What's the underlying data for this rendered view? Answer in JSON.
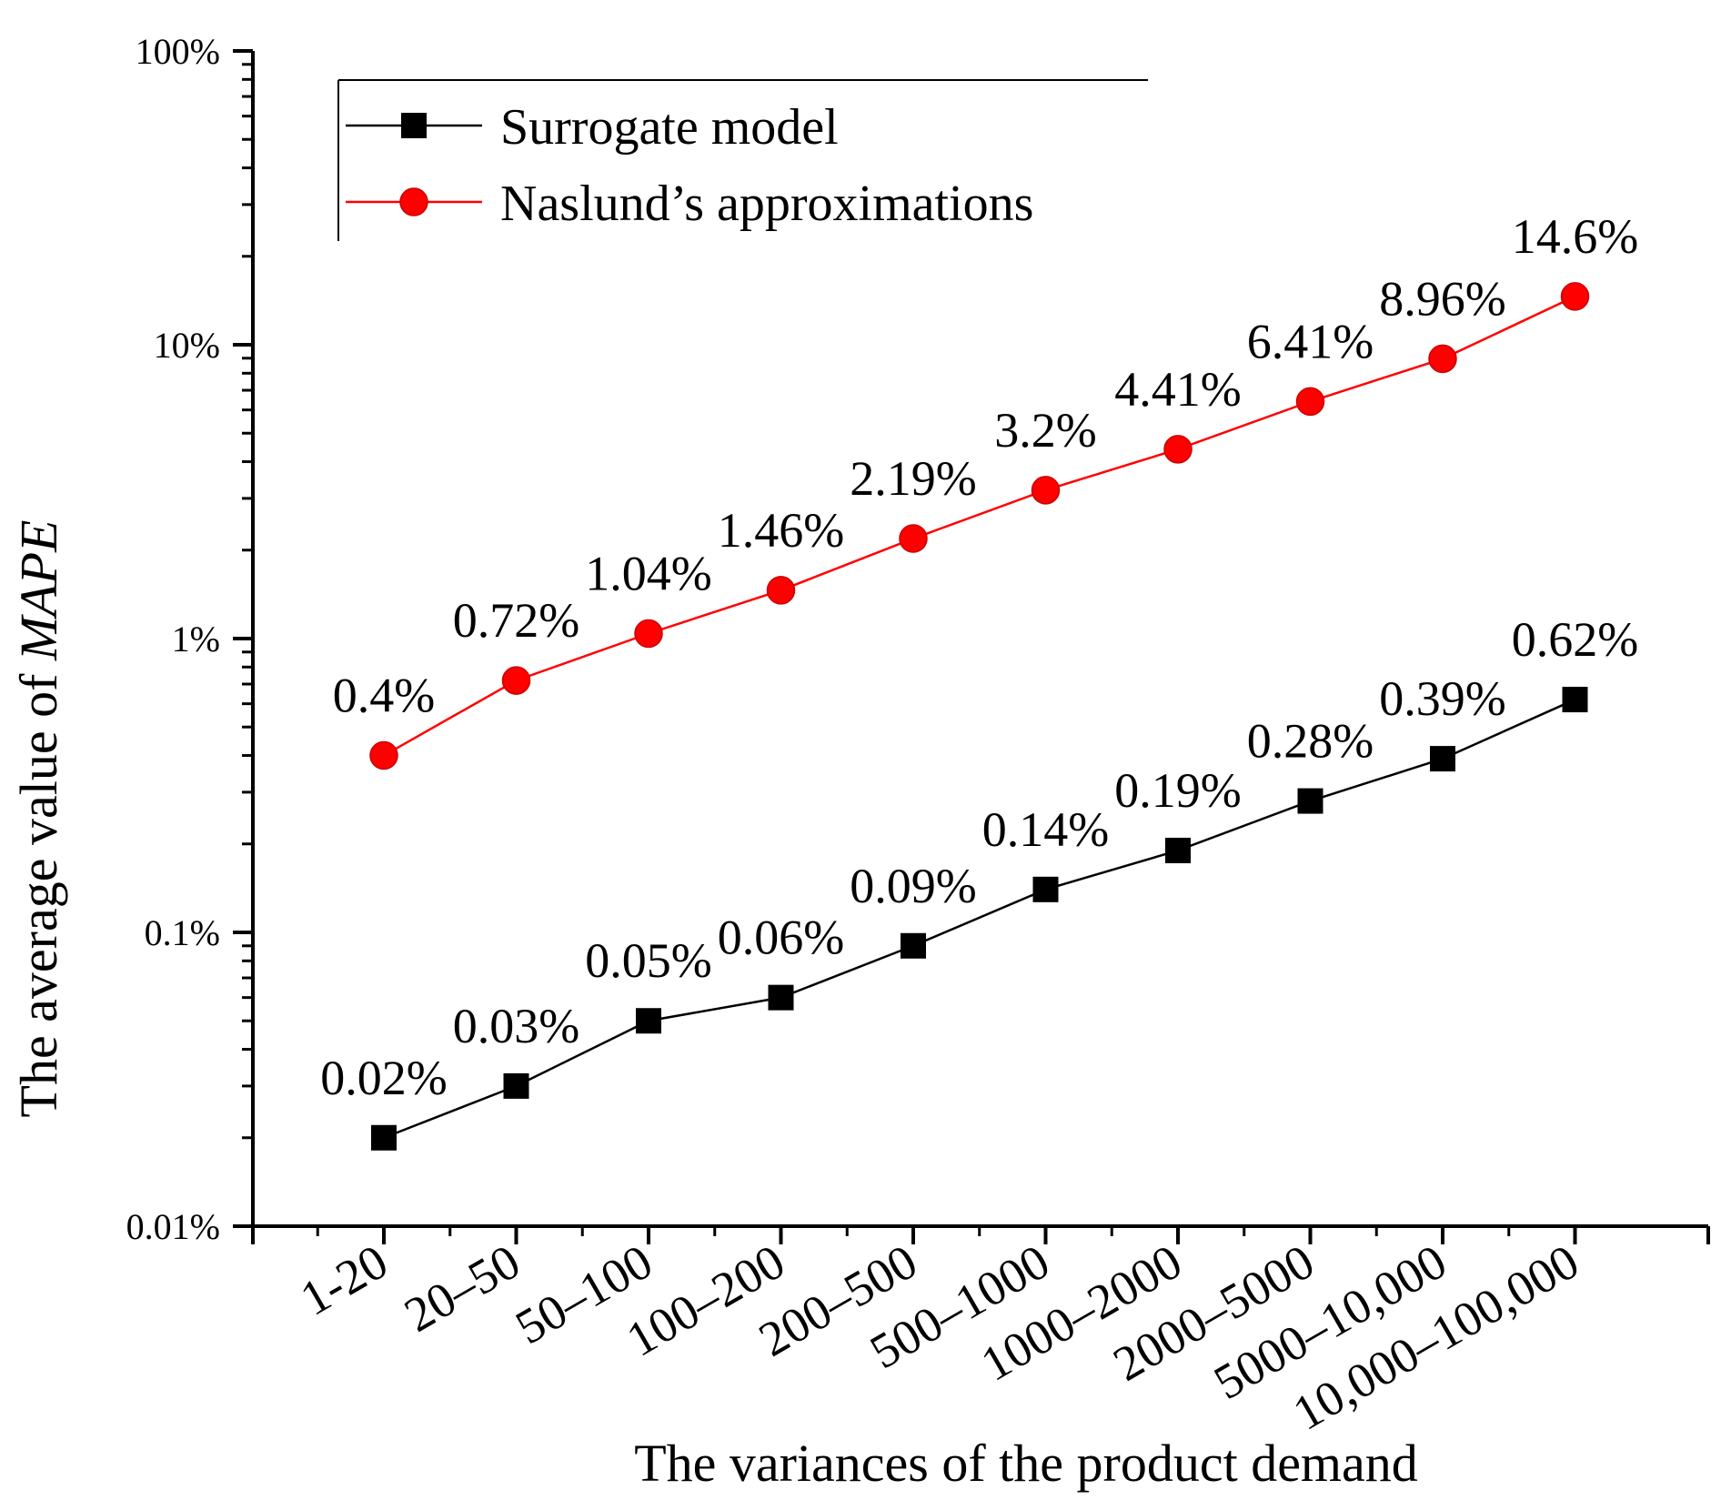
{
  "chart_data": {
    "type": "line",
    "xlabel": "The variances of the product demand",
    "ylabel_prefix": "The average value of ",
    "ylabel_italic": "MAPE",
    "yscale": "log",
    "ylim": [
      0.01,
      100
    ],
    "y_ticks": [
      {
        "value": 0.01,
        "label": "0.01%"
      },
      {
        "value": 0.1,
        "label": "0.1%"
      },
      {
        "value": 1,
        "label": "1%"
      },
      {
        "value": 10,
        "label": "10%"
      },
      {
        "value": 100,
        "label": "100%"
      }
    ],
    "categories": [
      "1-20",
      "20–50",
      "50–100",
      "100–200",
      "200–500",
      "500–1000",
      "1000–2000",
      "2000–5000",
      "5000–10,000",
      "10,000–100,000"
    ],
    "legend_position": "top-left",
    "series": [
      {
        "name": "Surrogate model",
        "color": "#000000",
        "marker": "square",
        "values": [
          0.02,
          0.03,
          0.05,
          0.06,
          0.09,
          0.14,
          0.19,
          0.28,
          0.39,
          0.62
        ],
        "labels": [
          "0.02%",
          "0.03%",
          "0.05%",
          "0.06%",
          "0.09%",
          "0.14%",
          "0.19%",
          "0.28%",
          "0.39%",
          "0.62%"
        ]
      },
      {
        "name": "Naslund’s approximations",
        "color": "#ff0000",
        "marker": "circle",
        "values": [
          0.4,
          0.72,
          1.04,
          1.46,
          2.19,
          3.2,
          4.41,
          6.41,
          8.96,
          14.6
        ],
        "labels": [
          "0.4%",
          "0.72%",
          "1.04%",
          "1.46%",
          "2.19%",
          "3.2%",
          "4.41%",
          "6.41%",
          "8.96%",
          "14.6%"
        ]
      }
    ]
  }
}
